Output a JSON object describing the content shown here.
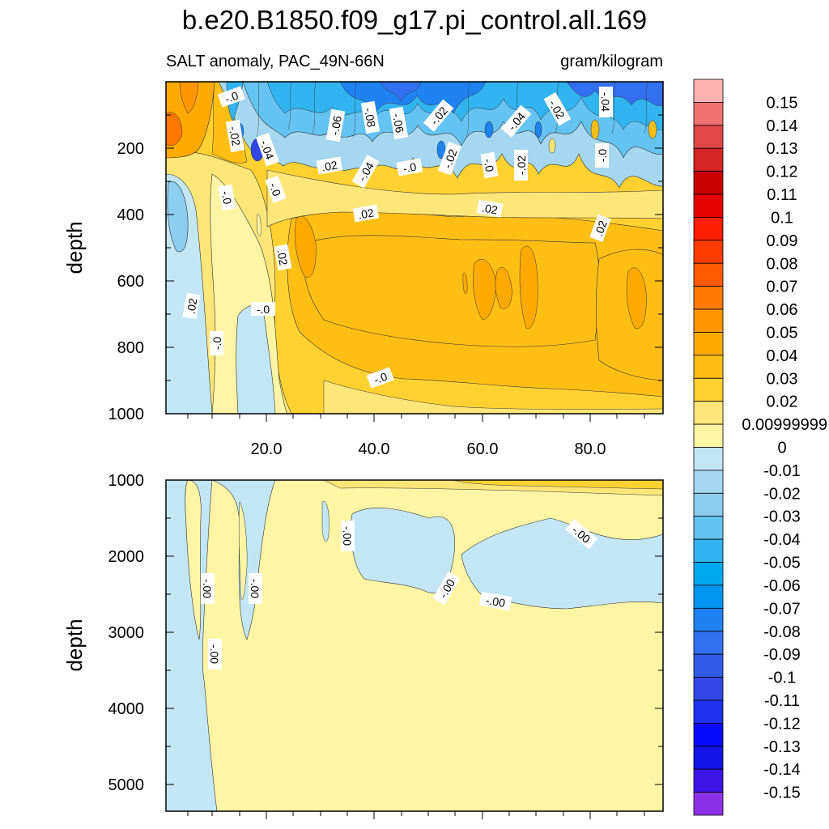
{
  "title": "b.e20.B1850.f09_g17.pi_control.all.169",
  "subtitle_left": "SALT anomaly, PAC_49N-66N",
  "subtitle_right": "gram/kilogram",
  "chart_data": [
    {
      "type": "contour",
      "panel": "upper",
      "ylabel": "depth",
      "xlabel": "",
      "xlim": [
        1,
        94
      ],
      "ylim": [
        1000,
        0
      ],
      "x_ticks": [
        "20.0",
        "40.0",
        "60.0",
        "80.0"
      ],
      "y_ticks": [
        "200",
        "400",
        "600",
        "800",
        "1000"
      ],
      "contour_labels": [
        "-.0",
        "-.02",
        "-.04",
        "-.06",
        "-.08",
        "-.06",
        "-.02",
        "-.04",
        "-.02",
        ".02",
        "-.04",
        "-.0",
        "-.02",
        "-.0",
        "-.02",
        "-.04",
        "-.0",
        "-.0",
        "-.0",
        ".02",
        ".02",
        ".02",
        ".02",
        ".02",
        "-.0",
        "-.0",
        "-.0",
        ".02"
      ]
    },
    {
      "type": "contour",
      "panel": "lower",
      "ylabel": "depth",
      "xlabel": "",
      "xlim": [
        1,
        94
      ],
      "ylim": [
        5350,
        1000
      ],
      "y_ticks": [
        "1000",
        "2000",
        "3000",
        "4000",
        "5000"
      ],
      "contour_labels": [
        "-.00",
        "-.00",
        "-.00",
        "-.00",
        "-.00",
        "-.00",
        "-.00"
      ]
    }
  ],
  "colorbar": {
    "labels": [
      "0.15",
      "0.14",
      "0.13",
      "0.12",
      "0.11",
      "0.1",
      "0.09",
      "0.08",
      "0.07",
      "0.06",
      "0.05",
      "0.04",
      "0.03",
      "0.02",
      "0.00999999",
      "0",
      "-0.01",
      "-0.02",
      "-0.03",
      "-0.04",
      "-0.05",
      "-0.06",
      "-0.07",
      "-0.08",
      "-0.09",
      "-0.1",
      "-0.11",
      "-0.12",
      "-0.13",
      "-0.14",
      "-0.15"
    ],
    "colors": [
      "#ffb4b4",
      "#f07070",
      "#e04848",
      "#d42424",
      "#c80000",
      "#e60000",
      "#ff1e00",
      "#ff3c00",
      "#ff5a00",
      "#ff7800",
      "#ff9600",
      "#ffaa00",
      "#ffbe14",
      "#ffd232",
      "#ffe678",
      "#fff5a5",
      "#c3e6f5",
      "#a5d7f0",
      "#8ccdf0",
      "#64c3f0",
      "#32b4f0",
      "#00aaf0",
      "#0096f0",
      "#1e82f0",
      "#3270f0",
      "#325ae6",
      "#3246e6",
      "#1e32f0",
      "#0a0aff",
      "#1414e6",
      "#3c14e6",
      "#8c32e6"
    ]
  }
}
